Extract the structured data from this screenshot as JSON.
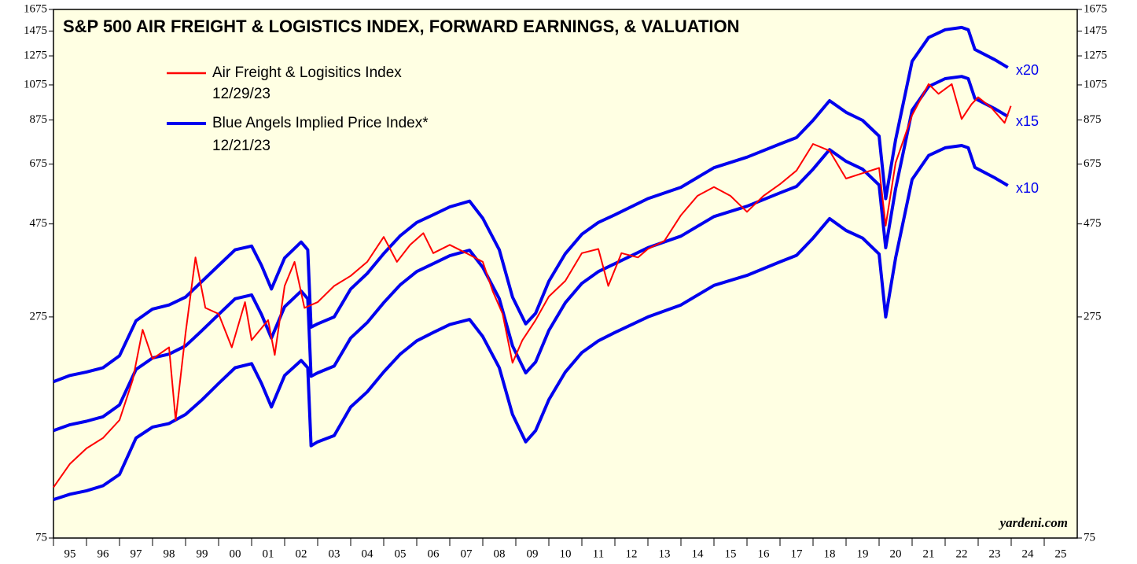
{
  "chart_data": {
    "type": "line",
    "title": "S&P 500 AIR FREIGHT & LOGISTICS INDEX, FORWARD EARNINGS, & VALUATION",
    "log_scale": true,
    "xlim": [
      1995,
      2026
    ],
    "ylim": [
      75,
      1675
    ],
    "yticks": [
      75,
      275,
      475,
      675,
      875,
      1075,
      1275,
      1475,
      1675
    ],
    "xticks": [
      {
        "value": 1995.5,
        "label": "95"
      },
      {
        "value": 1996.5,
        "label": "96"
      },
      {
        "value": 1997.5,
        "label": "97"
      },
      {
        "value": 1998.5,
        "label": "98"
      },
      {
        "value": 1999.5,
        "label": "99"
      },
      {
        "value": 2000.5,
        "label": "00"
      },
      {
        "value": 2001.5,
        "label": "01"
      },
      {
        "value": 2002.5,
        "label": "02"
      },
      {
        "value": 2003.5,
        "label": "03"
      },
      {
        "value": 2004.5,
        "label": "04"
      },
      {
        "value": 2005.5,
        "label": "05"
      },
      {
        "value": 2006.5,
        "label": "06"
      },
      {
        "value": 2007.5,
        "label": "07"
      },
      {
        "value": 2008.5,
        "label": "08"
      },
      {
        "value": 2009.5,
        "label": "09"
      },
      {
        "value": 2010.5,
        "label": "10"
      },
      {
        "value": 2011.5,
        "label": "11"
      },
      {
        "value": 2012.5,
        "label": "12"
      },
      {
        "value": 2013.5,
        "label": "13"
      },
      {
        "value": 2014.5,
        "label": "14"
      },
      {
        "value": 2015.5,
        "label": "15"
      },
      {
        "value": 2016.5,
        "label": "16"
      },
      {
        "value": 2017.5,
        "label": "17"
      },
      {
        "value": 2018.5,
        "label": "18"
      },
      {
        "value": 2019.5,
        "label": "19"
      },
      {
        "value": 2020.5,
        "label": "20"
      },
      {
        "value": 2021.5,
        "label": "21"
      },
      {
        "value": 2022.5,
        "label": "22"
      },
      {
        "value": 2023.5,
        "label": "23"
      },
      {
        "value": 2024.5,
        "label": "24"
      },
      {
        "value": 2025.5,
        "label": "25"
      }
    ],
    "legend": [
      {
        "name": "Air Freight & Logisitics Index",
        "date": "12/29/23",
        "color": "#ff0000"
      },
      {
        "name": "Blue Angels Implied Price Index*",
        "date": "12/21/23",
        "color": "#0000ee"
      }
    ],
    "annotations": [
      "x20",
      "x15",
      "x10",
      "yardeni.com"
    ],
    "series": [
      {
        "name": "Air Freight & Logisitics Index",
        "color": "#ff0000",
        "x": [
          1995,
          1995.5,
          1996,
          1996.5,
          1997,
          1997.4,
          1997.7,
          1998,
          1998.5,
          1998.7,
          1999,
          1999.3,
          1999.6,
          2000,
          2000.4,
          2000.8,
          2001,
          2001.5,
          2001.7,
          2002,
          2002.3,
          2002.6,
          2003,
          2003.5,
          2004,
          2004.5,
          2005,
          2005.4,
          2005.8,
          2006.2,
          2006.5,
          2007,
          2007.5,
          2008,
          2008.3,
          2008.6,
          2008.9,
          2009.2,
          2009.6,
          2010,
          2010.5,
          2011,
          2011.5,
          2011.8,
          2012.2,
          2012.7,
          2013,
          2013.5,
          2014,
          2014.5,
          2015,
          2015.5,
          2016,
          2016.5,
          2017,
          2017.5,
          2018,
          2018.5,
          2019,
          2019.5,
          2020,
          2020.2,
          2020.5,
          2021,
          2021.5,
          2021.8,
          2022.2,
          2022.5,
          2022.8,
          2023,
          2023.4,
          2023.8,
          2023.99
        ],
        "values": [
          101,
          116,
          127,
          135,
          150,
          190,
          255,
          215,
          230,
          150,
          250,
          390,
          290,
          280,
          230,
          300,
          240,
          270,
          220,
          330,
          380,
          290,
          300,
          330,
          350,
          380,
          440,
          380,
          420,
          450,
          400,
          420,
          400,
          380,
          320,
          280,
          210,
          240,
          270,
          310,
          340,
          400,
          410,
          330,
          400,
          390,
          410,
          430,
          500,
          560,
          590,
          560,
          510,
          560,
          600,
          650,
          760,
          730,
          620,
          640,
          660,
          470,
          680,
          900,
          1080,
          1020,
          1080,
          880,
          960,
          1000,
          940,
          860,
          950
        ]
      },
      {
        "name": "x20",
        "color": "#0000ee",
        "x": [
          1995,
          1995.5,
          1996,
          1996.5,
          1997,
          1997.5,
          1998,
          1998.5,
          1999,
          1999.5,
          2000,
          2000.5,
          2001,
          2001.3,
          2001.6,
          2002,
          2002.5,
          2002.7,
          2002.8,
          2003,
          2003.5,
          2004,
          2004.5,
          2005,
          2005.5,
          2006,
          2006.5,
          2007,
          2007.6,
          2008,
          2008.5,
          2008.9,
          2009.3,
          2009.6,
          2010,
          2010.5,
          2011,
          2011.5,
          2012,
          2013,
          2014,
          2015,
          2016,
          2017,
          2017.5,
          2018,
          2018.5,
          2019,
          2019.5,
          2020,
          2020.2,
          2020.5,
          2021,
          2021.5,
          2022,
          2022.5,
          2022.7,
          2022.9,
          2023.5,
          2023.9
        ],
        "values": [
          188,
          195,
          199,
          204,
          219,
          269,
          288,
          295,
          309,
          339,
          372,
          408,
          417,
          372,
          324,
          389,
          427,
          408,
          259,
          264,
          275,
          324,
          355,
          399,
          443,
          479,
          501,
          525,
          543,
          491,
          408,
          309,
          264,
          281,
          339,
          399,
          447,
          479,
          501,
          551,
          589,
          661,
          703,
          760,
          789,
          873,
          980,
          915,
          873,
          796,
          551,
          779,
          1235,
          1420,
          1487,
          1507,
          1487,
          1324,
          1247,
          1191
        ]
      },
      {
        "name": "x15",
        "color": "#0000ee",
        "x": [
          1995,
          1995.5,
          1996,
          1996.5,
          1997,
          1997.5,
          1998,
          1998.5,
          1999,
          1999.5,
          2000,
          2000.5,
          2001,
          2001.3,
          2001.6,
          2002,
          2002.5,
          2002.7,
          2002.8,
          2003,
          2003.5,
          2004,
          2004.5,
          2005,
          2005.5,
          2006,
          2006.5,
          2007,
          2007.6,
          2008,
          2008.5,
          2008.9,
          2009.3,
          2009.6,
          2010,
          2010.5,
          2011,
          2011.5,
          2012,
          2013,
          2014,
          2015,
          2016,
          2017,
          2017.5,
          2018,
          2018.5,
          2019,
          2019.5,
          2020,
          2020.2,
          2020.5,
          2021,
          2021.5,
          2022,
          2022.5,
          2022.7,
          2022.9,
          2023.5,
          2023.9
        ],
        "values": [
          141,
          146,
          149,
          153,
          164,
          202,
          216,
          221,
          232,
          254,
          279,
          306,
          313,
          279,
          243,
          292,
          320,
          306,
          194,
          198,
          206,
          243,
          266,
          299,
          332,
          359,
          376,
          394,
          407,
          368,
          306,
          232,
          198,
          211,
          254,
          299,
          335,
          359,
          376,
          413,
          442,
          496,
          527,
          570,
          592,
          655,
          735,
          686,
          655,
          597,
          413,
          584,
          926,
          1065,
          1115,
          1130,
          1115,
          993,
          935,
          893
        ]
      },
      {
        "name": "x10",
        "color": "#0000ee",
        "x": [
          1995,
          1995.5,
          1996,
          1996.5,
          1997,
          1997.5,
          1998,
          1998.5,
          1999,
          1999.5,
          2000,
          2000.5,
          2001,
          2001.3,
          2001.6,
          2002,
          2002.5,
          2002.7,
          2002.8,
          2003,
          2003.5,
          2004,
          2004.5,
          2005,
          2005.5,
          2006,
          2006.5,
          2007,
          2007.6,
          2008,
          2008.5,
          2008.9,
          2009.3,
          2009.6,
          2010,
          2010.5,
          2011,
          2011.5,
          2012,
          2013,
          2014,
          2015,
          2016,
          2017,
          2017.5,
          2018,
          2018.5,
          2019,
          2019.5,
          2020,
          2020.2,
          2020.5,
          2021,
          2021.5,
          2022,
          2022.5,
          2022.7,
          2022.9,
          2023.5,
          2023.9
        ],
        "values": [
          94,
          97,
          99,
          102,
          109,
          135,
          144,
          147,
          155,
          169,
          186,
          204,
          209,
          186,
          162,
          195,
          213,
          204,
          129,
          132,
          137,
          162,
          177,
          199,
          221,
          239,
          251,
          263,
          271,
          245,
          204,
          155,
          132,
          141,
          169,
          199,
          223,
          239,
          251,
          275,
          295,
          331,
          351,
          380,
          395,
          437,
          490,
          457,
          437,
          398,
          275,
          389,
          617,
          710,
          743,
          753,
          743,
          662,
          623,
          595
        ]
      }
    ]
  }
}
